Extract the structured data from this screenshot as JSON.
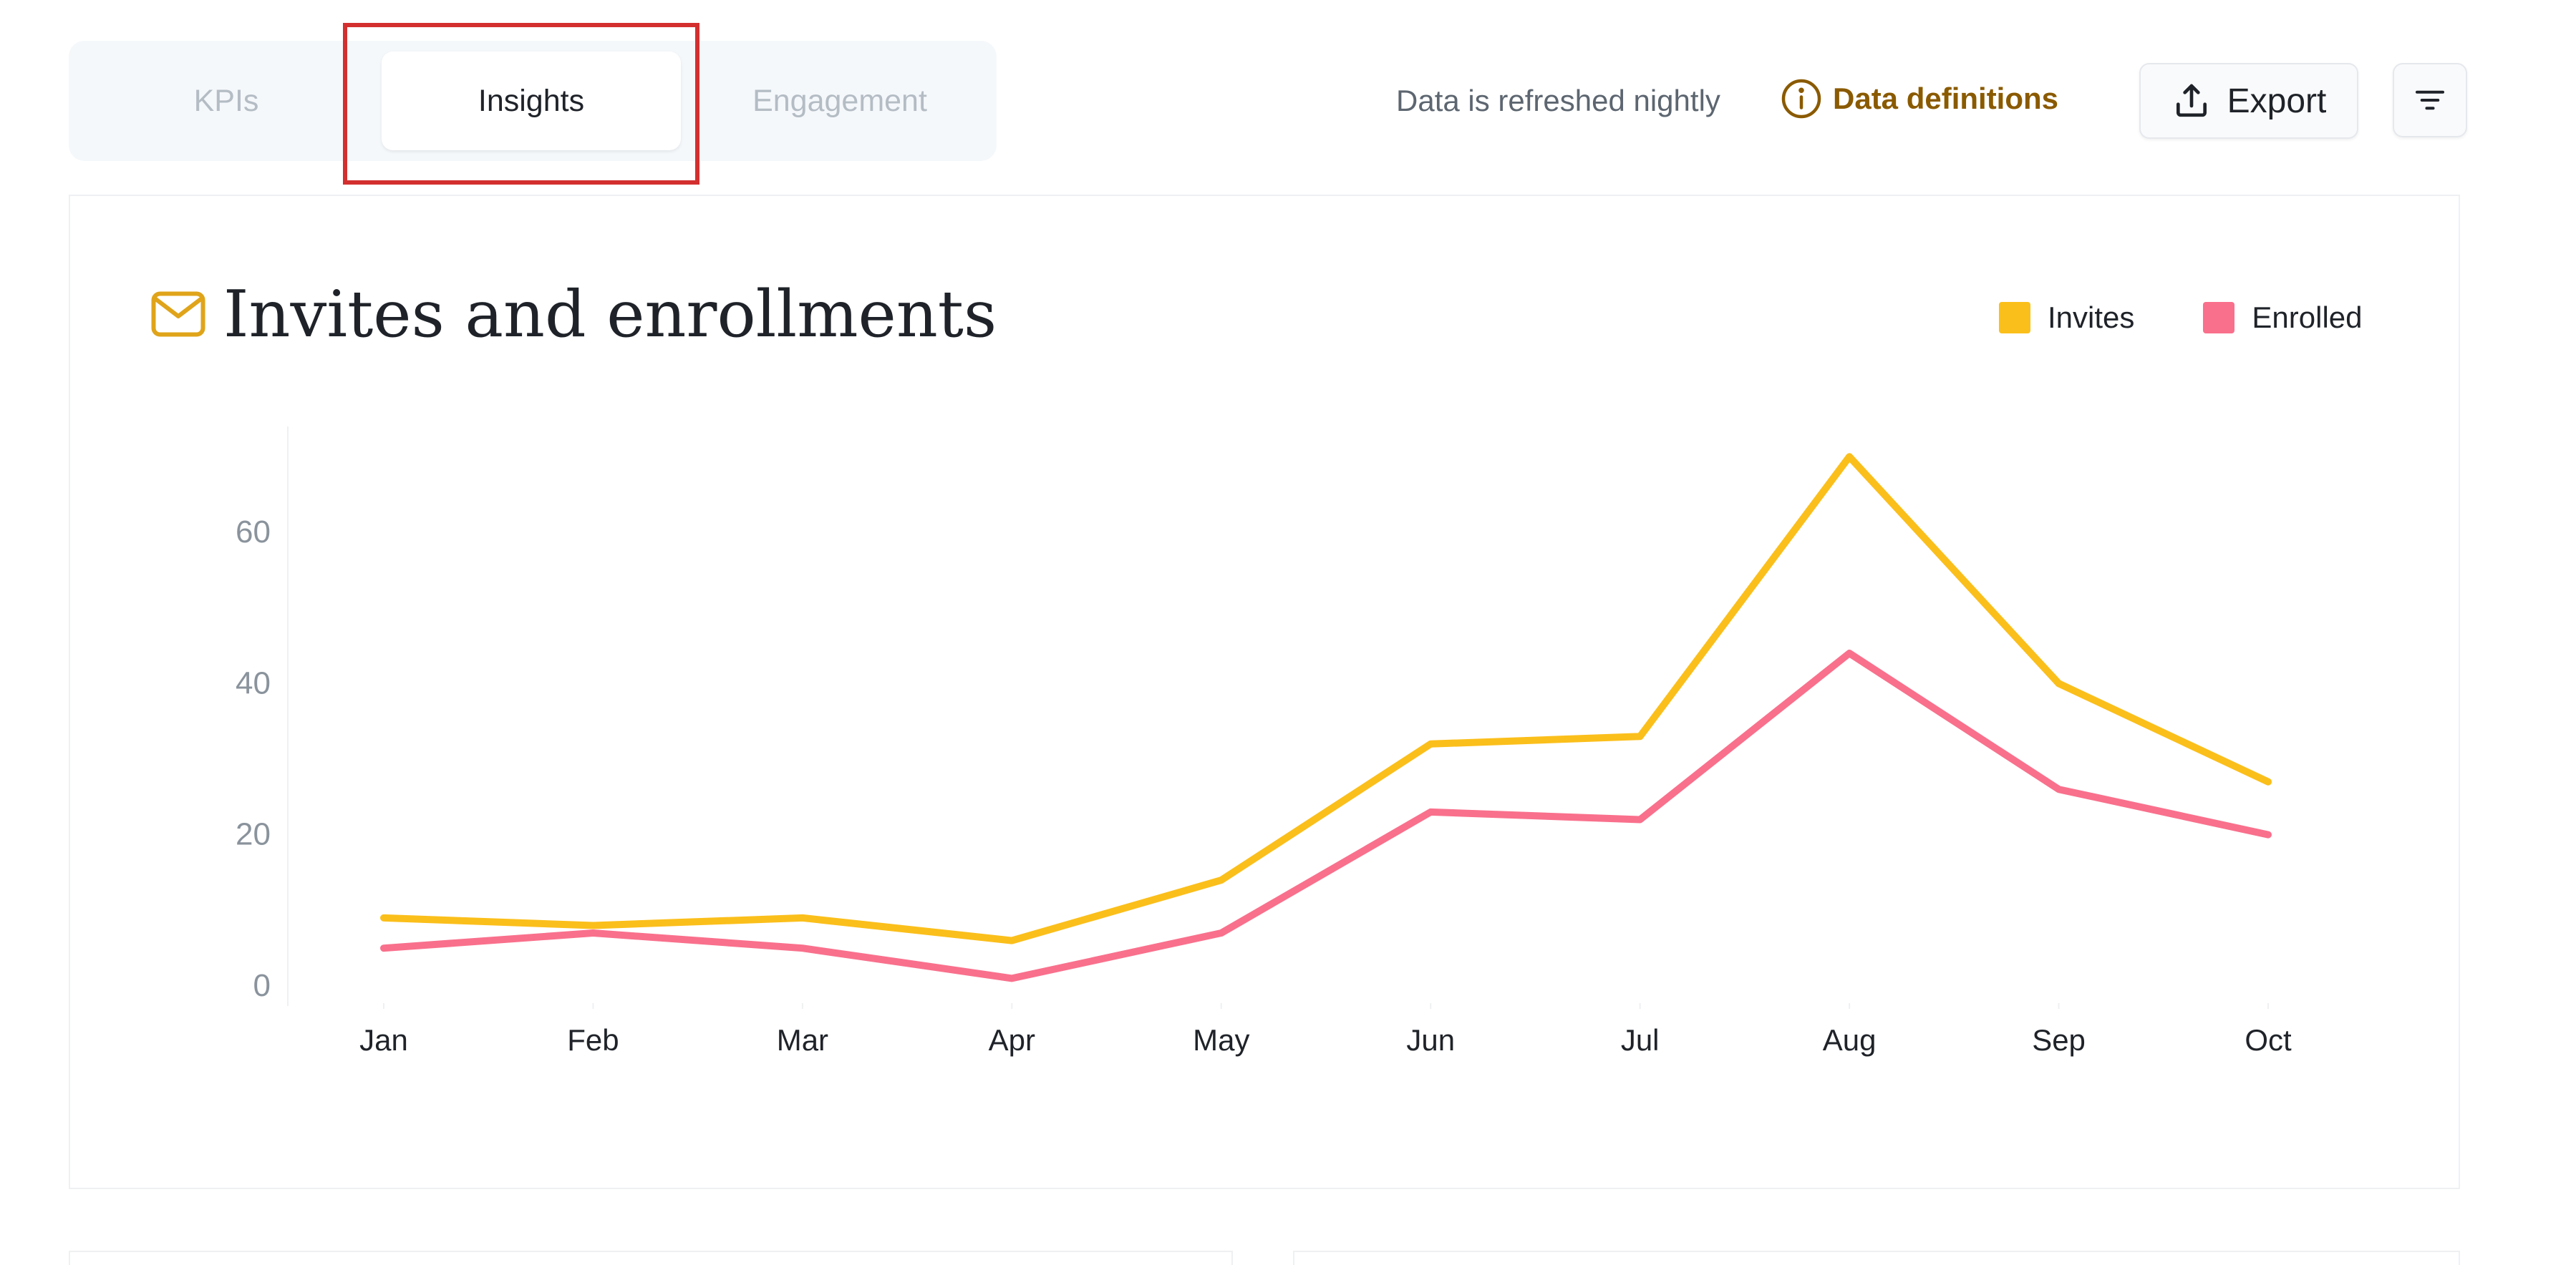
{
  "tabs": [
    {
      "label": "KPIs",
      "active": false
    },
    {
      "label": "Insights",
      "active": true
    },
    {
      "label": "Engagement",
      "active": false
    }
  ],
  "toolbar": {
    "refresh_note": "Data is refreshed nightly",
    "definitions_label": "Data definitions",
    "export_label": "Export",
    "info_icon": "info-circle-icon",
    "export_icon": "upload-icon",
    "filter_icon": "filter-lines-icon"
  },
  "card": {
    "title": "Invites and enrollments",
    "title_icon": "mail-icon"
  },
  "colors": {
    "invites": "#fbbf1b",
    "enrolled": "#f9708c",
    "accent": "#8a5a00",
    "highlight": "#d32f2f"
  },
  "chart_data": {
    "type": "line",
    "title": "Invites and enrollments",
    "categories": [
      "Jan",
      "Feb",
      "Mar",
      "Apr",
      "May",
      "Jun",
      "Jul",
      "Aug",
      "Sep",
      "Oct"
    ],
    "series": [
      {
        "name": "Invites",
        "color": "#fbbf1b",
        "values": [
          9,
          8,
          9,
          6,
          14,
          32,
          33,
          70,
          40,
          27
        ]
      },
      {
        "name": "Enrolled",
        "color": "#f9708c",
        "values": [
          5,
          7,
          5,
          1,
          7,
          23,
          22,
          44,
          26,
          20
        ]
      }
    ],
    "yticks": [
      0,
      20,
      40,
      60
    ],
    "ylim": [
      0,
      74
    ],
    "grid": false,
    "legend": "top-right"
  }
}
